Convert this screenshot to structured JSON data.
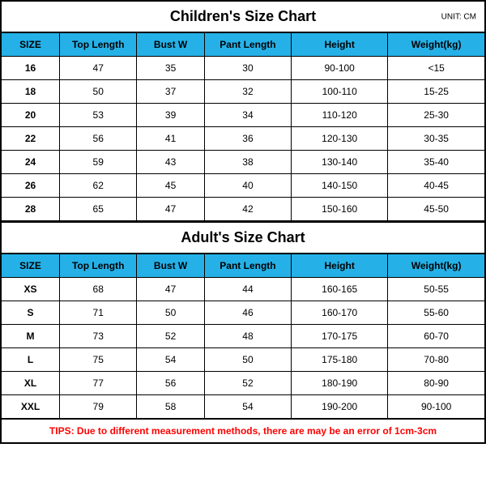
{
  "unit_label": "UNIT: CM",
  "header_bg": "#25b1e8",
  "header_border": "#000000",
  "cell_border": "#000000",
  "columns": [
    "SIZE",
    "Top Length",
    "Bust W",
    "Pant Length",
    "Height",
    "Weight(kg)"
  ],
  "col_widths_pct": [
    12,
    16,
    14,
    18,
    20,
    20
  ],
  "children": {
    "title": "Children's Size Chart",
    "rows": [
      [
        "16",
        "47",
        "35",
        "30",
        "90-100",
        "<15"
      ],
      [
        "18",
        "50",
        "37",
        "32",
        "100-110",
        "15-25"
      ],
      [
        "20",
        "53",
        "39",
        "34",
        "110-120",
        "25-30"
      ],
      [
        "22",
        "56",
        "41",
        "36",
        "120-130",
        "30-35"
      ],
      [
        "24",
        "59",
        "43",
        "38",
        "130-140",
        "35-40"
      ],
      [
        "26",
        "62",
        "45",
        "40",
        "140-150",
        "40-45"
      ],
      [
        "28",
        "65",
        "47",
        "42",
        "150-160",
        "45-50"
      ]
    ]
  },
  "adult": {
    "title": "Adult's Size Chart",
    "rows": [
      [
        "XS",
        "68",
        "47",
        "44",
        "160-165",
        "50-55"
      ],
      [
        "S",
        "71",
        "50",
        "46",
        "160-170",
        "55-60"
      ],
      [
        "M",
        "73",
        "52",
        "48",
        "170-175",
        "60-70"
      ],
      [
        "L",
        "75",
        "54",
        "50",
        "175-180",
        "70-80"
      ],
      [
        "XL",
        "77",
        "56",
        "52",
        "180-190",
        "80-90"
      ],
      [
        "XXL",
        "79",
        "58",
        "54",
        "190-200",
        "90-100"
      ]
    ]
  },
  "tips": {
    "text": "TIPS: Due to different measurement methods, there are may be an error of 1cm-3cm",
    "color": "#ff0000"
  }
}
